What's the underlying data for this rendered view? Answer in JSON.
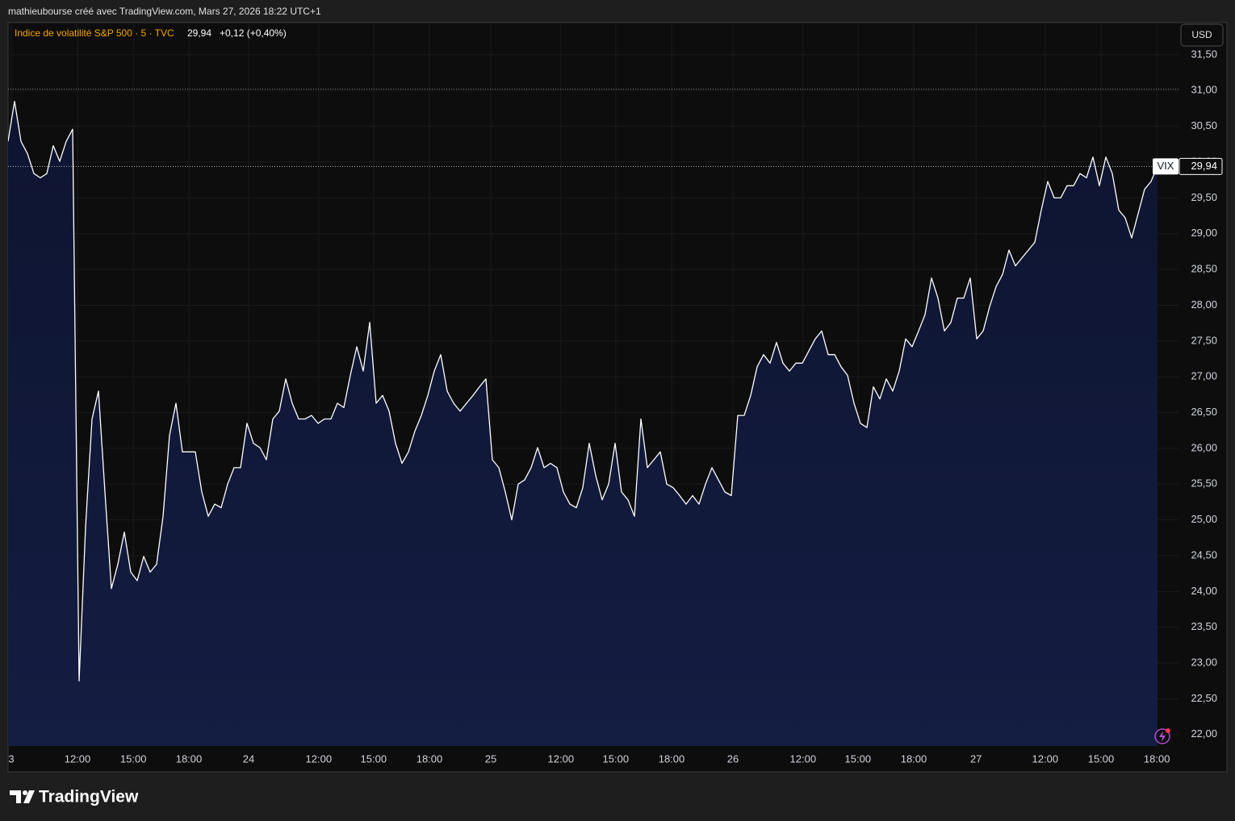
{
  "header": "mathieubourse créé avec TradingView.com, Mars 27, 2026 18:22 UTC+1",
  "footer": "TradingView",
  "chart_data": {
    "type": "area",
    "currency": "USD",
    "series": [
      {
        "name": "Indice de volatilité S&P 500 · 5 · TVC",
        "symbol": "VIX",
        "color": "#ffffff",
        "last": {
          "value": 29.94,
          "label": "29,94"
        },
        "change": "+0,12 (+0,40%)",
        "values": [
          30.29,
          30.85,
          30.29,
          30.12,
          29.84,
          29.78,
          29.84,
          30.23,
          30.01,
          30.29,
          30.46,
          22.75,
          24.9,
          26.41,
          26.8,
          25.39,
          24.04,
          24.38,
          24.83,
          24.27,
          24.15,
          24.49,
          24.27,
          24.38,
          25.05,
          26.18,
          26.63,
          25.95,
          25.95,
          25.95,
          25.39,
          25.05,
          25.22,
          25.17,
          25.5,
          25.73,
          25.73,
          26.35,
          26.07,
          26.01,
          25.84,
          26.41,
          26.52,
          26.97,
          26.63,
          26.41,
          26.41,
          26.46,
          26.35,
          26.41,
          26.41,
          26.63,
          26.57,
          27.02,
          27.42,
          27.08,
          27.76,
          26.63,
          26.74,
          26.52,
          26.07,
          25.79,
          25.95,
          26.24,
          26.46,
          26.74,
          27.08,
          27.31,
          26.8,
          26.63,
          26.52,
          26.63,
          26.74,
          26.86,
          26.97,
          25.84,
          25.73,
          25.39,
          25.0,
          25.5,
          25.56,
          25.73,
          26.01,
          25.73,
          25.79,
          25.73,
          25.39,
          25.22,
          25.17,
          25.45,
          26.07,
          25.62,
          25.28,
          25.5,
          26.07,
          25.39,
          25.28,
          25.05,
          26.41,
          25.73,
          25.84,
          25.95,
          25.5,
          25.45,
          25.34,
          25.22,
          25.34,
          25.22,
          25.5,
          25.73,
          25.56,
          25.39,
          25.34,
          26.46,
          26.46,
          26.74,
          27.14,
          27.31,
          27.19,
          27.48,
          27.19,
          27.08,
          27.19,
          27.19,
          27.36,
          27.53,
          27.64,
          27.31,
          27.31,
          27.14,
          27.02,
          26.63,
          26.35,
          26.29,
          26.86,
          26.69,
          26.97,
          26.8,
          27.08,
          27.53,
          27.42,
          27.64,
          27.87,
          28.38,
          28.1,
          27.64,
          27.76,
          28.1,
          28.1,
          28.38,
          27.53,
          27.64,
          27.98,
          28.26,
          28.43,
          28.77,
          28.55,
          28.66,
          28.77,
          28.88,
          29.33,
          29.73,
          29.5,
          29.5,
          29.67,
          29.67,
          29.84,
          29.78,
          30.07,
          29.67,
          30.07,
          29.84,
          29.33,
          29.22,
          28.94,
          29.28,
          29.62,
          29.73,
          29.94
        ]
      }
    ],
    "reference_line": 31.02,
    "xlim": [
      0,
      181.25
    ],
    "xticks": [
      {
        "value": 0.5,
        "label": "3"
      },
      {
        "value": 10.75,
        "label": "12:00"
      },
      {
        "value": 19.4,
        "label": "15:00"
      },
      {
        "value": 28,
        "label": "18:00"
      },
      {
        "value": 37.25,
        "label": "24"
      },
      {
        "value": 48.1,
        "label": "12:00"
      },
      {
        "value": 56.6,
        "label": "15:00"
      },
      {
        "value": 65.25,
        "label": "18:00"
      },
      {
        "value": 74.75,
        "label": "25"
      },
      {
        "value": 85.6,
        "label": "12:00"
      },
      {
        "value": 94.1,
        "label": "15:00"
      },
      {
        "value": 102.75,
        "label": "18:00"
      },
      {
        "value": 112.25,
        "label": "26"
      },
      {
        "value": 123.1,
        "label": "12:00"
      },
      {
        "value": 131.6,
        "label": "15:00"
      },
      {
        "value": 140.25,
        "label": "18:00"
      },
      {
        "value": 149.9,
        "label": "27"
      },
      {
        "value": 160.6,
        "label": "12:00"
      },
      {
        "value": 169.25,
        "label": "15:00"
      },
      {
        "value": 177.9,
        "label": "18:00"
      }
    ],
    "ylim": [
      21.84,
      31.95
    ],
    "yticks": [
      {
        "value": 22,
        "label": "22,00"
      },
      {
        "value": 22.5,
        "label": "22,50"
      },
      {
        "value": 23,
        "label": "23,00"
      },
      {
        "value": 23.5,
        "label": "23,50"
      },
      {
        "value": 24,
        "label": "24,00"
      },
      {
        "value": 24.5,
        "label": "24,50"
      },
      {
        "value": 25,
        "label": "25,00"
      },
      {
        "value": 25.5,
        "label": "25,50"
      },
      {
        "value": 26,
        "label": "26,00"
      },
      {
        "value": 26.5,
        "label": "26,50"
      },
      {
        "value": 27,
        "label": "27,00"
      },
      {
        "value": 27.5,
        "label": "27,50"
      },
      {
        "value": 28,
        "label": "28,00"
      },
      {
        "value": 28.5,
        "label": "28,50"
      },
      {
        "value": 29,
        "label": "29,00"
      },
      {
        "value": 29.5,
        "label": "29,50"
      },
      {
        "value": 30,
        "label": "30,00"
      },
      {
        "value": 30.5,
        "label": "30,50"
      },
      {
        "value": 31,
        "label": "31,00"
      },
      {
        "value": 31.5,
        "label": "31,50"
      }
    ],
    "grid": true
  }
}
